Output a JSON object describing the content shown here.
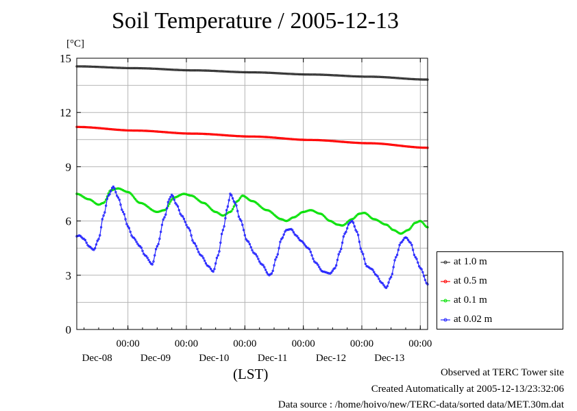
{
  "chart_data": {
    "type": "line",
    "title": "Soil Temperature / 2005-12-13",
    "ylabel": "[°C]",
    "xlabel": "(LST)",
    "ylim": [
      0,
      15
    ],
    "yticks": [
      "0",
      "3",
      "6",
      "9",
      "12",
      "15"
    ],
    "xlim": [
      0,
      144
    ],
    "xticks": [
      {
        "t": 21,
        "time": "00:00",
        "date": "Dec-08"
      },
      {
        "t": 45,
        "time": "00:00",
        "date": "Dec-09"
      },
      {
        "t": 69,
        "time": "00:00",
        "date": "Dec-10"
      },
      {
        "t": 93,
        "time": "00:00",
        "date": "Dec-11"
      },
      {
        "t": 117,
        "time": "00:00",
        "date": "Dec-12"
      },
      {
        "t": 141,
        "time": "00:00",
        "date": "Dec-13"
      }
    ],
    "grid": true,
    "legend_position": "lower-right, outside plot",
    "series": [
      {
        "name": "at 1.0 m",
        "color": "#333333",
        "points": [
          [
            0,
            14.55
          ],
          [
            24,
            14.45
          ],
          [
            48,
            14.33
          ],
          [
            72,
            14.22
          ],
          [
            96,
            14.1
          ],
          [
            120,
            13.98
          ],
          [
            144,
            13.82
          ]
        ]
      },
      {
        "name": "at 0.5 m",
        "color": "#ff0000",
        "points": [
          [
            0,
            11.2
          ],
          [
            24,
            11.0
          ],
          [
            48,
            10.83
          ],
          [
            72,
            10.67
          ],
          [
            96,
            10.48
          ],
          [
            120,
            10.3
          ],
          [
            144,
            10.05
          ]
        ]
      },
      {
        "name": "at 0.1 m",
        "color": "#00e000",
        "points": [
          [
            0,
            7.5
          ],
          [
            5,
            7.2
          ],
          [
            9,
            6.9
          ],
          [
            11,
            7.0
          ],
          [
            14,
            7.7
          ],
          [
            17,
            7.8
          ],
          [
            21,
            7.6
          ],
          [
            26,
            7.0
          ],
          [
            33,
            6.5
          ],
          [
            36,
            6.6
          ],
          [
            40,
            7.3
          ],
          [
            44,
            7.5
          ],
          [
            47,
            7.4
          ],
          [
            52,
            7.0
          ],
          [
            57,
            6.5
          ],
          [
            60,
            6.3
          ],
          [
            63,
            6.5
          ],
          [
            66,
            7.1
          ],
          [
            68,
            7.4
          ],
          [
            72,
            7.1
          ],
          [
            78,
            6.6
          ],
          [
            84,
            6.1
          ],
          [
            86,
            6.0
          ],
          [
            89,
            6.2
          ],
          [
            93,
            6.5
          ],
          [
            96,
            6.6
          ],
          [
            100,
            6.4
          ],
          [
            104,
            6.0
          ],
          [
            107,
            5.8
          ],
          [
            109,
            5.75
          ],
          [
            113,
            6.1
          ],
          [
            116,
            6.4
          ],
          [
            118,
            6.45
          ],
          [
            122,
            6.1
          ],
          [
            127,
            5.8
          ],
          [
            130,
            5.5
          ],
          [
            133,
            5.3
          ],
          [
            136,
            5.5
          ],
          [
            139,
            5.9
          ],
          [
            141,
            6.0
          ],
          [
            144,
            5.65
          ]
        ]
      },
      {
        "name": "at 0.02 m",
        "color": "#2020ff",
        "points": [
          [
            0,
            5.15
          ],
          [
            1,
            5.2
          ],
          [
            3,
            5.0
          ],
          [
            5,
            4.6
          ],
          [
            7,
            4.4
          ],
          [
            9,
            5.0
          ],
          [
            11,
            6.3
          ],
          [
            13,
            7.4
          ],
          [
            15,
            7.9
          ],
          [
            17,
            7.3
          ],
          [
            19,
            6.5
          ],
          [
            21,
            5.7
          ],
          [
            23,
            5.1
          ],
          [
            26,
            4.6
          ],
          [
            28,
            4.1
          ],
          [
            31,
            3.6
          ],
          [
            33,
            4.6
          ],
          [
            36,
            6.2
          ],
          [
            38,
            7.2
          ],
          [
            39,
            7.45
          ],
          [
            41,
            6.9
          ],
          [
            43,
            6.3
          ],
          [
            46,
            5.6
          ],
          [
            48,
            4.8
          ],
          [
            51,
            4.1
          ],
          [
            54,
            3.5
          ],
          [
            56,
            3.2
          ],
          [
            58,
            4.1
          ],
          [
            60,
            5.5
          ],
          [
            62,
            6.8
          ],
          [
            63,
            7.5
          ],
          [
            65,
            7.0
          ],
          [
            67,
            6.1
          ],
          [
            70,
            4.9
          ],
          [
            73,
            4.2
          ],
          [
            76,
            3.6
          ],
          [
            79,
            3.0
          ],
          [
            80,
            3.1
          ],
          [
            82,
            4.0
          ],
          [
            84,
            5.0
          ],
          [
            86,
            5.5
          ],
          [
            88,
            5.55
          ],
          [
            90,
            5.2
          ],
          [
            92,
            4.9
          ],
          [
            95,
            4.5
          ],
          [
            98,
            3.7
          ],
          [
            101,
            3.2
          ],
          [
            104,
            3.1
          ],
          [
            106,
            3.4
          ],
          [
            108,
            4.3
          ],
          [
            110,
            5.3
          ],
          [
            112,
            5.9
          ],
          [
            113,
            6.0
          ],
          [
            115,
            5.4
          ],
          [
            117,
            4.3
          ],
          [
            119,
            3.5
          ],
          [
            121,
            3.35
          ],
          [
            123,
            3.0
          ],
          [
            125,
            2.6
          ],
          [
            127,
            2.3
          ],
          [
            129,
            2.9
          ],
          [
            131,
            4.0
          ],
          [
            133,
            4.8
          ],
          [
            135,
            5.1
          ],
          [
            137,
            4.8
          ],
          [
            139,
            4.0
          ],
          [
            141,
            3.4
          ],
          [
            144,
            2.5
          ]
        ]
      }
    ]
  },
  "footer": {
    "observed": "Observed at TERC Tower site",
    "created": "Created Automatically at 2005-12-13/23:32:06",
    "source": "Data source : /home/hoivo/new/TERC-data/sorted  data/MET.30m.dat"
  }
}
